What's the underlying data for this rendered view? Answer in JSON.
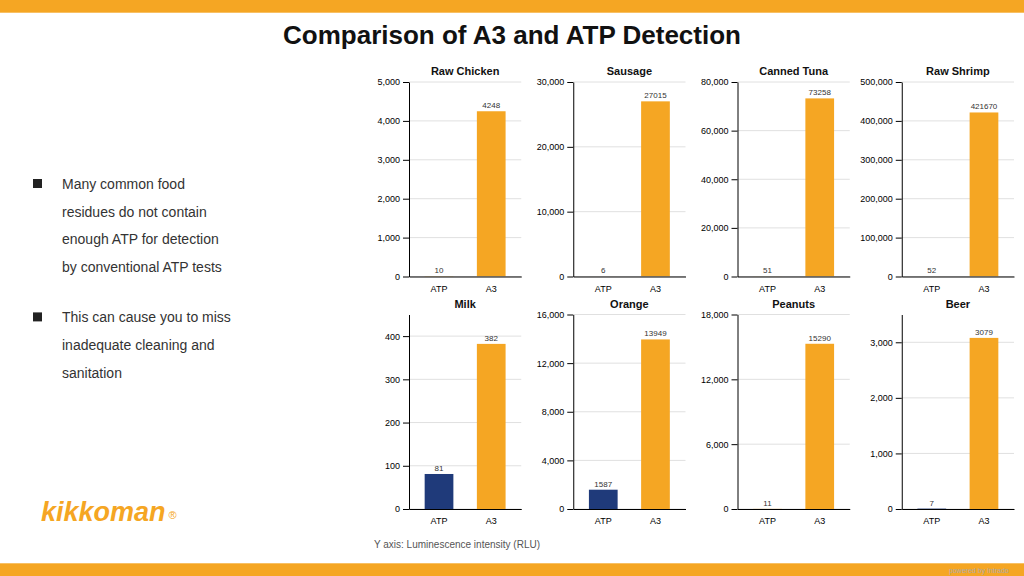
{
  "title": "Comparison of A3 and ATP Detection",
  "bullets": [
    [
      "Many common food",
      "residues do not contain",
      "enough ATP for detection",
      "by conventional ATP tests"
    ],
    [
      "This can cause you to miss",
      "inadequate cleaning and",
      "sanitation"
    ]
  ],
  "logo": "kikkoman",
  "logo_mark": "®",
  "footer": "powered by Intrado",
  "note": "Y axis: Luminescence intensity (RLU)",
  "chart_data": [
    {
      "type": "bar",
      "title": "Raw Chicken",
      "categories": [
        "ATP",
        "A3"
      ],
      "values": [
        10,
        4248
      ],
      "colors": [
        "#F5A623",
        "#F5A623"
      ],
      "ylim": [
        0,
        5000
      ],
      "yticks": [
        0,
        {
          "value": 1000,
          "label": "1,000"
        },
        {
          "value": 2000,
          "label": "2,000"
        },
        {
          "value": 3000,
          "label": "3,000"
        },
        {
          "value": 4000,
          "label": "4,000"
        },
        {
          "value": 5000,
          "label": "5,000"
        }
      ],
      "grid": true,
      "data_labels": true
    },
    {
      "type": "bar",
      "title": "Sausage",
      "categories": [
        "ATP",
        "A3"
      ],
      "values": [
        6,
        27015
      ],
      "colors": [
        "#F5A623",
        "#F5A623"
      ],
      "ylim": [
        0,
        30000
      ],
      "yticks": [
        0,
        {
          "value": 10000,
          "label": "10,000"
        },
        {
          "value": 20000,
          "label": "20,000"
        },
        {
          "value": 30000,
          "label": "30,000"
        }
      ],
      "grid": true,
      "data_labels": true
    },
    {
      "type": "bar",
      "title": "Canned Tuna",
      "categories": [
        "ATP",
        "A3"
      ],
      "values": [
        51,
        73258
      ],
      "colors": [
        "#F5A623",
        "#F5A623"
      ],
      "ylim": [
        0,
        80000
      ],
      "yticks": [
        0,
        {
          "value": 20000,
          "label": "20,000"
        },
        {
          "value": 40000,
          "label": "40,000"
        },
        {
          "value": 60000,
          "label": "60,000"
        },
        {
          "value": 80000,
          "label": "80,000"
        }
      ],
      "grid": true,
      "data_labels": true
    },
    {
      "type": "bar",
      "title": "Raw Shrimp",
      "categories": [
        "ATP",
        "A3"
      ],
      "values": [
        52,
        421670
      ],
      "colors": [
        "#F5A623",
        "#F5A623"
      ],
      "ylim": [
        0,
        500000
      ],
      "yticks": [
        0,
        {
          "value": 100000,
          "label": "100,000"
        },
        {
          "value": 200000,
          "label": "200,000"
        },
        {
          "value": 300000,
          "label": "300,000"
        },
        {
          "value": 400000,
          "label": "400,000"
        },
        {
          "value": 500000,
          "label": "500,000"
        }
      ],
      "grid": true,
      "data_labels": true
    },
    {
      "type": "bar",
      "title": "Milk",
      "categories": [
        "ATP",
        "A3"
      ],
      "values": [
        81,
        382
      ],
      "colors": [
        "#1F3A7A",
        "#F5A623"
      ],
      "ylim": [
        0,
        450
      ],
      "yticks": [
        0,
        100,
        200,
        300,
        400
      ],
      "grid": true,
      "data_labels": true
    },
    {
      "type": "bar",
      "title": "Orange",
      "categories": [
        "ATP",
        "A3"
      ],
      "values": [
        1587,
        13949
      ],
      "colors": [
        "#1F3A7A",
        "#F5A623"
      ],
      "ylim": [
        0,
        16000
      ],
      "yticks": [
        0,
        {
          "value": 4000,
          "label": "4,000"
        },
        {
          "value": 8000,
          "label": "8,000"
        },
        {
          "value": 12000,
          "label": "12,000"
        },
        {
          "value": 16000,
          "label": "16,000"
        }
      ],
      "grid": true,
      "data_labels": true
    },
    {
      "type": "bar",
      "title": "Peanuts",
      "categories": [
        "ATP",
        "A3"
      ],
      "values": [
        11,
        15290
      ],
      "colors": [
        "#F5A623",
        "#F5A623"
      ],
      "ylim": [
        0,
        18000
      ],
      "yticks": [
        0,
        {
          "value": 6000,
          "label": "6,000"
        },
        {
          "value": 12000,
          "label": "12,000"
        },
        {
          "value": 18000,
          "label": "18,000"
        }
      ],
      "grid": true,
      "data_labels": true
    },
    {
      "type": "bar",
      "title": "Beer",
      "categories": [
        "ATP",
        "A3"
      ],
      "values": [
        7,
        3079
      ],
      "colors": [
        "#1F3A7A",
        "#F5A623"
      ],
      "ylim": [
        0,
        3500
      ],
      "yticks": [
        0,
        {
          "value": 1000,
          "label": "1,000"
        },
        {
          "value": 2000,
          "label": "2,000"
        },
        {
          "value": 3000,
          "label": "3,000"
        }
      ],
      "grid": true,
      "data_labels": true
    }
  ]
}
